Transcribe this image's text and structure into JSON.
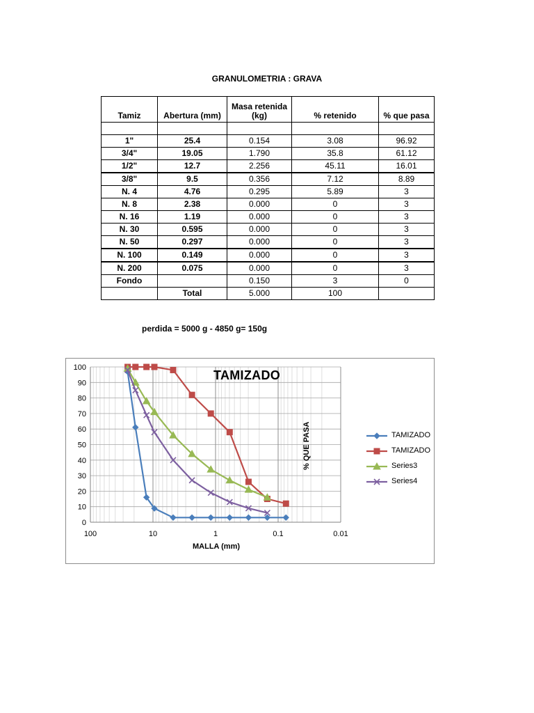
{
  "title": "GRANULOMETRIA : GRAVA",
  "table": {
    "headers": [
      "Tamiz",
      "Abertura (mm)",
      "Masa retenida (kg)",
      "% retenido",
      "% que pasa"
    ],
    "rows": [
      [
        "1\"",
        "25.4",
        "0.154",
        "3.08",
        "96.92"
      ],
      [
        "3/4\"",
        "19.05",
        "1.790",
        "35.8",
        "61.12"
      ],
      [
        "1/2\"",
        "12.7",
        "2.256",
        "45.11",
        "16.01"
      ],
      [
        "3/8\"",
        "9.5",
        "0.356",
        "7.12",
        "8.89"
      ],
      [
        "N. 4",
        "4.76",
        "0.295",
        "5.89",
        "3"
      ],
      [
        "N. 8",
        "2.38",
        "0.000",
        "0",
        "3"
      ],
      [
        "N. 16",
        "1.19",
        "0.000",
        "0",
        "3"
      ],
      [
        "N. 30",
        "0.595",
        "0.000",
        "0",
        "3"
      ],
      [
        "N. 50",
        "0.297",
        "0.000",
        "0",
        "3"
      ],
      [
        "N. 100",
        "0.149",
        "0.000",
        "0",
        "3"
      ],
      [
        "N. 200",
        "0.075",
        "0.000",
        "0",
        "3"
      ],
      [
        "Fondo",
        "",
        "0.150",
        "3",
        "0"
      ]
    ],
    "total_label": "Total",
    "total_mass": "5.000",
    "total_percent": "100"
  },
  "note": "perdida = 5000 g - 4850 g= 150g",
  "chart_data": {
    "type": "scatter",
    "title": "TAMIZADO",
    "xlabel": "MALLA (mm)",
    "ylabel": "% QUE PASA",
    "x_scale": "log",
    "x_reversed": true,
    "xlim": [
      100,
      0.01
    ],
    "ylim": [
      0,
      100
    ],
    "x_ticks": [
      100,
      10,
      1,
      0.1,
      0.01
    ],
    "x_tick_labels": [
      "100",
      "10",
      "1",
      "0.1",
      "0.01"
    ],
    "y_ticks": [
      0,
      10,
      20,
      30,
      40,
      50,
      60,
      70,
      80,
      90,
      100
    ],
    "grid": true,
    "legend_position": "right",
    "series": [
      {
        "name": "TAMIZADO",
        "color": "#4a7ebb",
        "marker": "diamond",
        "x": [
          25.4,
          19.05,
          12.7,
          9.5,
          4.76,
          2.38,
          1.19,
          0.595,
          0.297,
          0.149,
          0.075
        ],
        "y": [
          96.92,
          61.12,
          16.01,
          8.89,
          3,
          3,
          3,
          3,
          3,
          3,
          3
        ]
      },
      {
        "name": "TAMIZADO",
        "color": "#be4b48",
        "marker": "square",
        "x": [
          25.4,
          19.05,
          12.7,
          9.5,
          4.76,
          2.38,
          1.19,
          0.595,
          0.297,
          0.149,
          0.075
        ],
        "y": [
          100,
          100,
          100,
          100,
          98,
          82,
          70,
          58,
          26,
          15,
          12
        ]
      },
      {
        "name": "Series3",
        "color": "#98b954",
        "marker": "triangle",
        "x": [
          25.4,
          19.05,
          12.7,
          9.5,
          4.76,
          2.38,
          1.19,
          0.595,
          0.297,
          0.149
        ],
        "y": [
          99,
          90,
          78,
          71,
          56,
          44,
          34,
          27,
          21,
          16
        ]
      },
      {
        "name": "Series4",
        "color": "#7d60a0",
        "marker": "x",
        "x": [
          25.4,
          19.05,
          12.7,
          9.5,
          4.76,
          2.38,
          1.19,
          0.595,
          0.297,
          0.149
        ],
        "y": [
          98,
          85,
          69,
          58,
          40,
          27,
          19,
          13,
          9,
          6
        ]
      }
    ]
  }
}
